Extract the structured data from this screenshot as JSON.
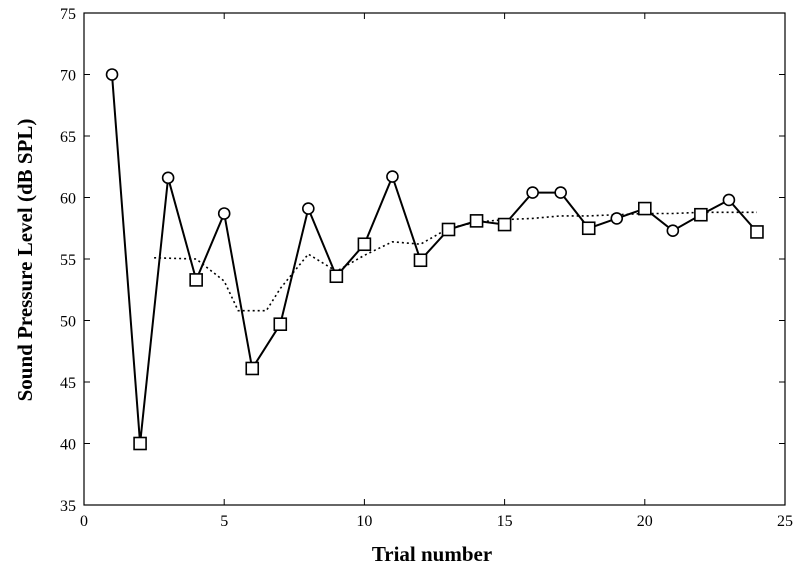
{
  "chart_data": {
    "type": "line",
    "title": "",
    "xlabel": "Trial number",
    "ylabel": "Sound Pressure Level (dB SPL)",
    "xlim": [
      0,
      25
    ],
    "ylim": [
      35,
      75
    ],
    "xticks": [
      0,
      5,
      10,
      15,
      20,
      25
    ],
    "yticks": [
      35,
      40,
      45,
      50,
      55,
      60,
      65,
      70,
      75
    ],
    "grid": false,
    "legend": "none",
    "series": [
      {
        "style": "solid",
        "color": "#000000",
        "points": [
          {
            "x": 1,
            "y": 70.0,
            "marker": "circle"
          },
          {
            "x": 2,
            "y": 40.0,
            "marker": "square"
          },
          {
            "x": 3,
            "y": 61.6,
            "marker": "circle"
          },
          {
            "x": 4,
            "y": 53.3,
            "marker": "square"
          },
          {
            "x": 5,
            "y": 58.7,
            "marker": "circle"
          },
          {
            "x": 6,
            "y": 46.1,
            "marker": "square"
          },
          {
            "x": 7,
            "y": 49.7,
            "marker": "square"
          },
          {
            "x": 8,
            "y": 59.1,
            "marker": "circle"
          },
          {
            "x": 9,
            "y": 53.6,
            "marker": "square"
          },
          {
            "x": 10,
            "y": 56.2,
            "marker": "square"
          },
          {
            "x": 11,
            "y": 61.7,
            "marker": "circle"
          },
          {
            "x": 12,
            "y": 54.9,
            "marker": "square"
          },
          {
            "x": 13,
            "y": 57.4,
            "marker": "square"
          },
          {
            "x": 14,
            "y": 58.1,
            "marker": "square"
          },
          {
            "x": 15,
            "y": 57.8,
            "marker": "square"
          },
          {
            "x": 16,
            "y": 60.4,
            "marker": "circle"
          },
          {
            "x": 17,
            "y": 60.4,
            "marker": "circle"
          },
          {
            "x": 18,
            "y": 57.5,
            "marker": "square"
          },
          {
            "x": 19,
            "y": 58.3,
            "marker": "circle"
          },
          {
            "x": 20,
            "y": 59.1,
            "marker": "square"
          },
          {
            "x": 21,
            "y": 57.3,
            "marker": "circle"
          },
          {
            "x": 22,
            "y": 58.6,
            "marker": "square"
          },
          {
            "x": 23,
            "y": 59.8,
            "marker": "circle"
          },
          {
            "x": 24,
            "y": 57.2,
            "marker": "square"
          }
        ]
      },
      {
        "style": "dotted",
        "color": "#000000",
        "x": [
          2.5,
          4,
          5,
          5.5,
          6,
          6.5,
          7,
          8,
          9,
          10,
          11,
          12,
          13,
          14,
          15,
          16,
          17,
          18,
          19,
          20,
          21,
          22,
          23,
          24
        ],
        "y": [
          55.1,
          55.0,
          53.2,
          50.8,
          50.8,
          50.8,
          52.6,
          55.4,
          54.0,
          55.3,
          56.4,
          56.2,
          57.5,
          58.0,
          58.2,
          58.3,
          58.5,
          58.5,
          58.6,
          58.7,
          58.7,
          58.8,
          58.8,
          58.8
        ]
      }
    ]
  }
}
